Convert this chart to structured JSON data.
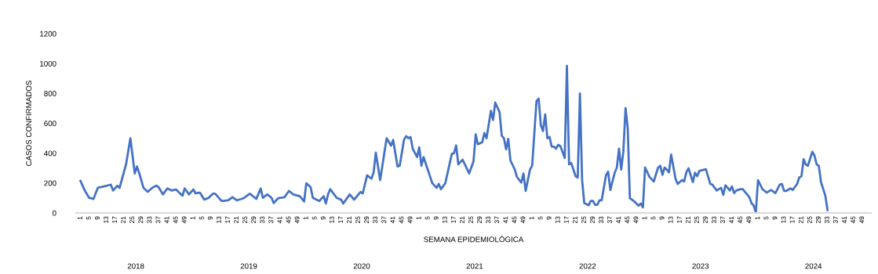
{
  "chart_data": {
    "type": "line",
    "xlabel": "SEMANA EPIDEMIOLÓGICA",
    "ylabel": "CASOS CONFIRMADOS",
    "annotations": [
      "2018",
      "2019",
      "2020",
      "2021",
      "2022",
      "2023",
      "2024"
    ],
    "categories": [
      "1",
      null,
      null,
      null,
      "5",
      null,
      null,
      null,
      "9",
      null,
      null,
      null,
      "13",
      null,
      null,
      null,
      "17",
      null,
      null,
      null,
      "21",
      null,
      null,
      null,
      "25",
      null,
      null,
      null,
      "29",
      null,
      null,
      null,
      "33",
      null,
      null,
      null,
      "37",
      null,
      null,
      null,
      "41",
      null,
      null,
      null,
      "45",
      null,
      null,
      null,
      "49",
      null,
      null,
      null,
      "1",
      null,
      null,
      null,
      "5",
      null,
      null,
      null,
      "9",
      null,
      null,
      null,
      "13",
      null,
      null,
      null,
      "17",
      null,
      null,
      null,
      "21",
      null,
      null,
      null,
      "25",
      null,
      null,
      null,
      "29",
      null,
      null,
      null,
      "33",
      null,
      null,
      null,
      "37",
      null,
      null,
      null,
      "41",
      null,
      null,
      null,
      "45",
      null,
      null,
      null,
      "49",
      null,
      null,
      null,
      "1",
      null,
      null,
      null,
      "5",
      null,
      null,
      null,
      "9",
      null,
      null,
      null,
      "13",
      null,
      null,
      null,
      "17",
      null,
      null,
      null,
      "21",
      null,
      null,
      null,
      "25",
      null,
      null,
      null,
      "29",
      null,
      null,
      null,
      "33",
      null,
      null,
      null,
      "37",
      null,
      null,
      null,
      "41",
      null,
      null,
      null,
      "45",
      null,
      null,
      null,
      "49",
      null,
      null,
      null,
      "1",
      null,
      null,
      null,
      "5",
      null,
      null,
      null,
      "9",
      null,
      null,
      null,
      "13",
      null,
      null,
      null,
      "17",
      null,
      null,
      null,
      "21",
      null,
      null,
      null,
      "25",
      null,
      null,
      null,
      "29",
      null,
      null,
      null,
      "33",
      null,
      null,
      null,
      "37",
      null,
      null,
      null,
      "41",
      null,
      null,
      null,
      "45",
      null,
      null,
      null,
      "49",
      null,
      null,
      null,
      "1",
      null,
      null,
      null,
      "5",
      null,
      null,
      null,
      "9",
      null,
      null,
      null,
      "13",
      null,
      null,
      null,
      "17",
      null,
      null,
      null,
      "21",
      null,
      null,
      null,
      "25",
      null,
      null,
      null,
      "29",
      null,
      null,
      null,
      "33",
      null,
      null,
      null,
      "37",
      null,
      null,
      null,
      "41",
      null,
      null,
      null,
      "45",
      null,
      null,
      null,
      "49",
      null,
      null,
      null,
      "1",
      null,
      null,
      null,
      "5",
      null,
      null,
      null,
      "9",
      null,
      null,
      null,
      "13",
      null,
      null,
      null,
      "17",
      null,
      null,
      null,
      "21",
      null,
      null,
      null,
      "25",
      null,
      null,
      null,
      "29",
      null,
      null,
      null,
      "33",
      null,
      null,
      null,
      "37",
      null,
      null,
      null,
      "41",
      null,
      null,
      null,
      "45",
      null,
      null,
      null,
      "49",
      null,
      null,
      null,
      "1",
      null,
      null,
      null,
      "5",
      null,
      null,
      null,
      "9",
      null,
      null,
      null,
      "13",
      null,
      null,
      null,
      "17",
      null,
      null,
      null,
      "21",
      null,
      null,
      null,
      "25",
      null,
      null,
      null,
      "29",
      null,
      null,
      null,
      "33",
      null,
      null,
      null,
      "37",
      null,
      null,
      null,
      "41",
      null,
      null,
      null,
      "45",
      null,
      null,
      null,
      "49",
      null,
      null,
      null
    ],
    "ylim": [
      0,
      1200
    ],
    "yticks": [
      0,
      200,
      400,
      600,
      800,
      1000,
      1200
    ],
    "grid": false,
    "legend": false,
    "series": [
      {
        "color": "#4472c4",
        "values": [
          215,
          183,
          150,
          126,
          101,
          98,
          94,
          131,
          168,
          172,
          175,
          179,
          182,
          186,
          189,
          150,
          166,
          182,
          168,
          220,
          273,
          325,
          413,
          500,
          382,
          264,
          311,
          270,
          219,
          168,
          155,
          141,
          155,
          168,
          176,
          183,
          172,
          148,
          124,
          144,
          164,
          157,
          150,
          154,
          157,
          143,
          129,
          115,
          164,
          144,
          124,
          141,
          157,
          131,
          134,
          136,
          113,
          89,
          95,
          101,
          115,
          129,
          129,
          113,
          96,
          80,
          81,
          83,
          84,
          95,
          106,
          95,
          84,
          89,
          93,
          98,
          108,
          119,
          129,
          117,
          106,
          94,
          129,
          164,
          101,
          113,
          124,
          113,
          101,
          66,
          82,
          98,
          101,
          103,
          106,
          127,
          147,
          136,
          124,
          120,
          116,
          112,
          95,
          77,
          199,
          186,
          172,
          101,
          94,
          87,
          80,
          96,
          112,
          63,
          124,
          159,
          140,
          120,
          101,
          95,
          89,
          63,
          83,
          104,
          124,
          107,
          89,
          106,
          124,
          141,
          131,
          192,
          252,
          241,
          229,
          272,
          404,
          312,
          220,
          313,
          407,
          500,
          476,
          451,
          489,
          400,
          311,
          316,
          404,
          491,
          514,
          500,
          508,
          430,
          402,
          374,
          439,
          316,
          374,
          330,
          287,
          243,
          199,
          184,
          168,
          194,
          159,
          179,
          199,
          264,
          330,
          395,
          400,
          451,
          325,
          341,
          356,
          325,
          295,
          264,
          305,
          346,
          526,
          460,
          467,
          473,
          535,
          500,
          592,
          683,
          622,
          739,
          707,
          674,
          517,
          500,
          426,
          496,
          351,
          321,
          290,
          241,
          222,
          203,
          264,
          147,
          219,
          290,
          316,
          532,
          748,
          765,
          587,
          548,
          660,
          500,
          509,
          444,
          444,
          430,
          456,
          447,
          408,
          368,
          985,
          325,
          334,
          290,
          246,
          237,
          800,
          220,
          66,
          59,
          51,
          80,
          80,
          54,
          54,
          84,
          84,
          168,
          252,
          276,
          154,
          212,
          269,
          304,
          430,
          290,
          412,
          701,
          570,
          98,
          88,
          77,
          63,
          49,
          63,
          37,
          304,
          273,
          242,
          226,
          211,
          258,
          304,
          316,
          255,
          304,
          290,
          272,
          391,
          310,
          229,
          194,
          207,
          220,
          211,
          272,
          299,
          253,
          206,
          269,
          246,
          281,
          285,
          289,
          293,
          244,
          194,
          189,
          170,
          150,
          159,
          168,
          121,
          185,
          168,
          150,
          177,
          133,
          150,
          155,
          159,
          159,
          141,
          124,
          106,
          66,
          49,
          5,
          220,
          190,
          159,
          148,
          136,
          145,
          154,
          144,
          133,
          161,
          189,
          194,
          147,
          147,
          156,
          164,
          154,
          174,
          194,
          237,
          246,
          360,
          325,
          316,
          363,
          409,
          384,
          325,
          316,
          206,
          161,
          115,
          19,
          null,
          null,
          null,
          null,
          null,
          null,
          null,
          null,
          null,
          null,
          null,
          null,
          null,
          null,
          null,
          null,
          null,
          null,
          null
        ]
      }
    ]
  }
}
